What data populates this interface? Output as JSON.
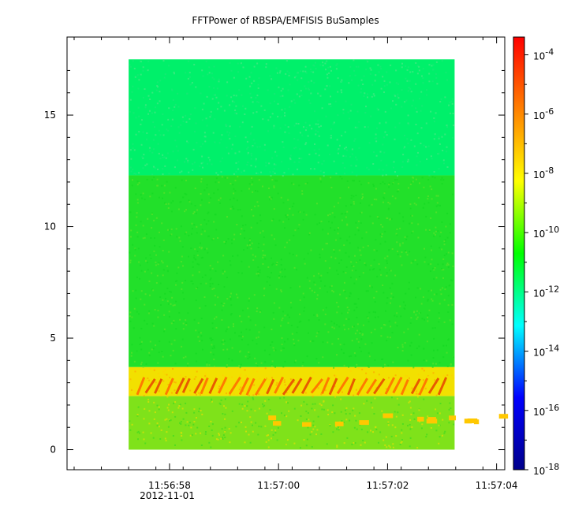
{
  "chart_data": {
    "type": "heatmap",
    "title": "FFTPower of RBSPA/EMFISIS  BuSamples",
    "xlabel": "",
    "ylabel": "",
    "x_ticks": [
      "11:56:58",
      "11:57:00",
      "11:57:02",
      "11:57:04"
    ],
    "x_date_label": "2012-11-01",
    "x_range_seconds": [
      -1.13,
      6.9
    ],
    "data_x_range_seconds": [
      0.0,
      5.98
    ],
    "x_tick_values_seconds": [
      0.75,
      2.75,
      4.75,
      6.75
    ],
    "ylim": [
      -0.9,
      18.5
    ],
    "y_ticks": [
      0,
      5,
      10,
      15
    ],
    "data_y_range": [
      0,
      17.5
    ],
    "colorbar": {
      "scale": "log",
      "range": [
        "1e-18",
        "1e-3.4"
      ],
      "ticks": [
        {
          "base": "10",
          "exp": "-4",
          "value_exp": -4
        },
        {
          "base": "10",
          "exp": "-6",
          "value_exp": -6
        },
        {
          "base": "10",
          "exp": "-8",
          "value_exp": -8
        },
        {
          "base": "10",
          "exp": "-10",
          "value_exp": -10
        },
        {
          "base": "10",
          "exp": "-12",
          "value_exp": -12
        },
        {
          "base": "10",
          "exp": "-14",
          "value_exp": -14
        },
        {
          "base": "10",
          "exp": "-16",
          "value_exp": -16
        },
        {
          "base": "10",
          "exp": "-18",
          "value_exp": -18
        }
      ],
      "colormap": [
        "#00008b",
        "#0000ff",
        "#00ffff",
        "#00ff00",
        "#ffff00",
        "#ff8000",
        "#ff0000"
      ]
    },
    "bands": [
      {
        "y_from": 12.3,
        "y_to": 17.5,
        "color": "#00f06a"
      },
      {
        "y_from": 3.7,
        "y_to": 12.3,
        "color": "#22e02a"
      },
      {
        "y_from": 2.4,
        "y_to": 3.7,
        "color": "#f2e000"
      },
      {
        "y_from": 0.0,
        "y_to": 2.4,
        "color": "#7fe21a"
      }
    ],
    "grid": false
  }
}
